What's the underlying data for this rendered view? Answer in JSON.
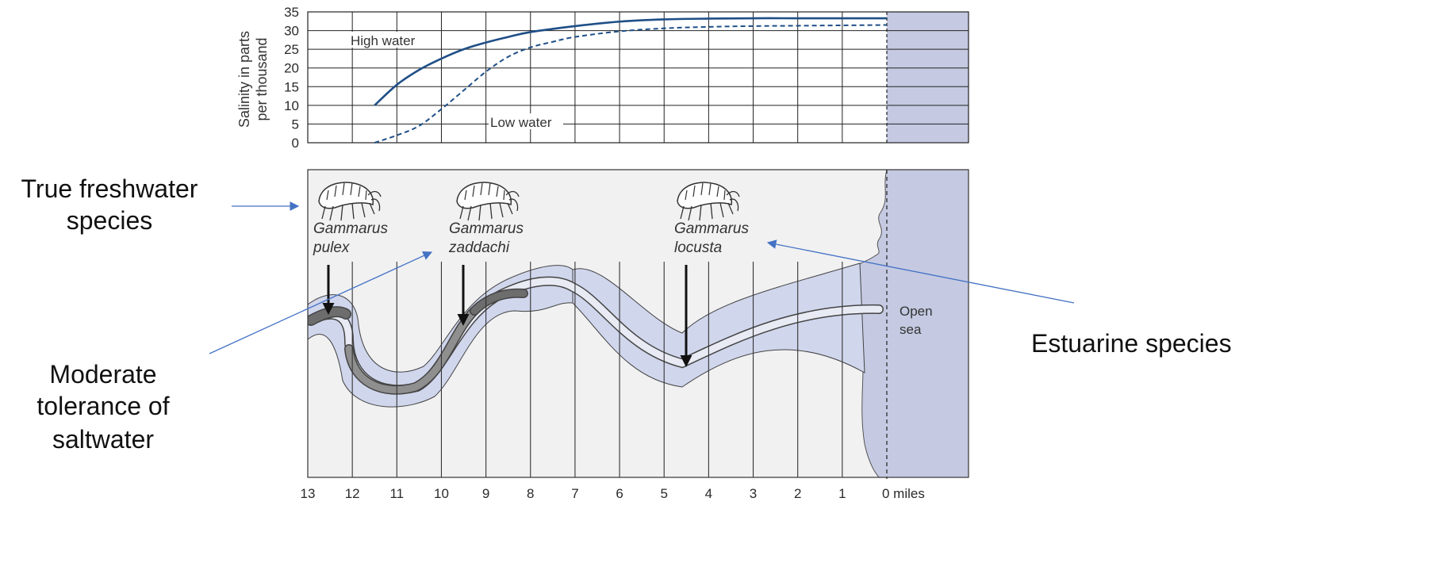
{
  "chart_data": {
    "type": "line",
    "ylabel_lines": [
      "Salinity in parts",
      "per thousand"
    ],
    "ylim": [
      0,
      35
    ],
    "yticks": [
      35,
      30,
      25,
      20,
      15,
      10,
      5,
      0
    ],
    "x_ticks": [
      "13",
      "12",
      "11",
      "10",
      "9",
      "8",
      "7",
      "6",
      "5",
      "4",
      "3",
      "2",
      "1",
      "0 miles"
    ],
    "x_values": [
      13,
      12,
      11,
      10,
      9,
      8,
      7,
      6,
      5,
      4,
      3,
      2,
      1,
      0
    ],
    "xlim": [
      13,
      0
    ],
    "grid": true,
    "series": [
      {
        "name": "High water",
        "x": [
          11.5,
          11,
          10.5,
          10,
          9.5,
          9,
          8.5,
          8,
          7,
          6,
          5,
          4,
          3,
          2,
          1,
          0
        ],
        "y": [
          10,
          15.5,
          19.5,
          22.5,
          25,
          26.8,
          28.3,
          29.6,
          31.2,
          32.4,
          33,
          33.2,
          33.3,
          33.3,
          33.3,
          33.3
        ],
        "style": "solid"
      },
      {
        "name": "Low water",
        "x": [
          11.5,
          11,
          10.5,
          10,
          9.5,
          9,
          8.5,
          8,
          7.5,
          7,
          6,
          5,
          4,
          3,
          2,
          1,
          0
        ],
        "y": [
          0,
          2,
          4.5,
          9,
          14,
          19,
          23,
          25.5,
          27,
          28.3,
          29.8,
          30.6,
          31,
          31.2,
          31.3,
          31.4,
          31.5
        ],
        "style": "dashed"
      }
    ]
  },
  "labels": {
    "high_water": "High water",
    "low_water": "Low water",
    "open_sea_line1": "Open",
    "open_sea_line2": "sea"
  },
  "species": [
    {
      "genus": "Gammarus",
      "epithet": "pulex"
    },
    {
      "genus": "Gammarus",
      "epithet": "zaddachi"
    },
    {
      "genus": "Gammarus",
      "epithet": "locusta"
    }
  ],
  "callouts": {
    "freshwater_line1": "True freshwater",
    "freshwater_line2": "species",
    "moderate_line1": "Moderate",
    "moderate_line2": "tolerance of",
    "moderate_line3": "saltwater",
    "estuarine": "Estuarine species"
  },
  "colors": {
    "sea": "#c5cae2",
    "river_band": "#d0d6ec",
    "lane_light": "#e8ebf4",
    "dark_zone": "#6d6d6d",
    "mid_zone": "#8f8f8f",
    "high_line": "#1f4f87",
    "grid": "#222222",
    "callout_arrow": "#4472c4"
  }
}
